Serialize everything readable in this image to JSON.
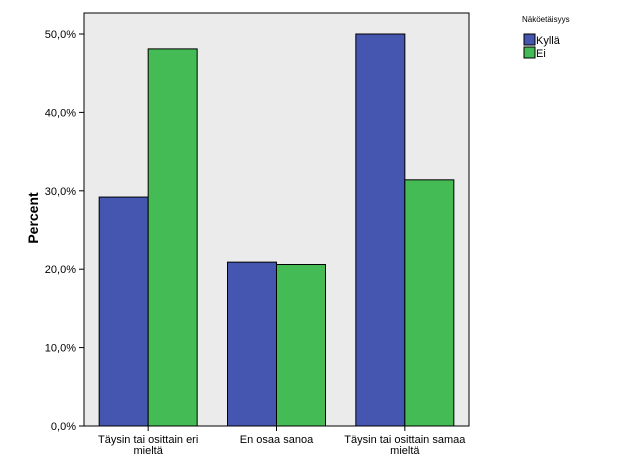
{
  "chart_data": {
    "type": "bar",
    "categories": [
      "Täysin tai osittain eri mieltä",
      "En osaa sanoa",
      "Täysin tai osittain samaa mieltä"
    ],
    "category_lines": [
      [
        "Täysin tai osittain eri",
        "mieltä"
      ],
      [
        "En osaa sanoa"
      ],
      [
        "Täysin tai osittain samaa",
        "mieltä"
      ]
    ],
    "series": [
      {
        "name": "Kyllä",
        "values": [
          29.2,
          20.9,
          50.0
        ],
        "color": "#4456b0"
      },
      {
        "name": "Ei",
        "values": [
          48.1,
          20.6,
          31.4
        ],
        "color": "#44bb55"
      }
    ],
    "ylabel": "Percent",
    "ylim": [
      0,
      50
    ],
    "yticks": [
      0,
      10,
      20,
      30,
      40,
      50
    ],
    "ytick_labels": [
      "0,0%",
      "10,0%",
      "20,0%",
      "30,0%",
      "40,0%",
      "50,0%"
    ],
    "legend_title": "Näköetäisyys",
    "legend_position": "top-right",
    "plot_background": "#ebebeb",
    "grid": false
  }
}
